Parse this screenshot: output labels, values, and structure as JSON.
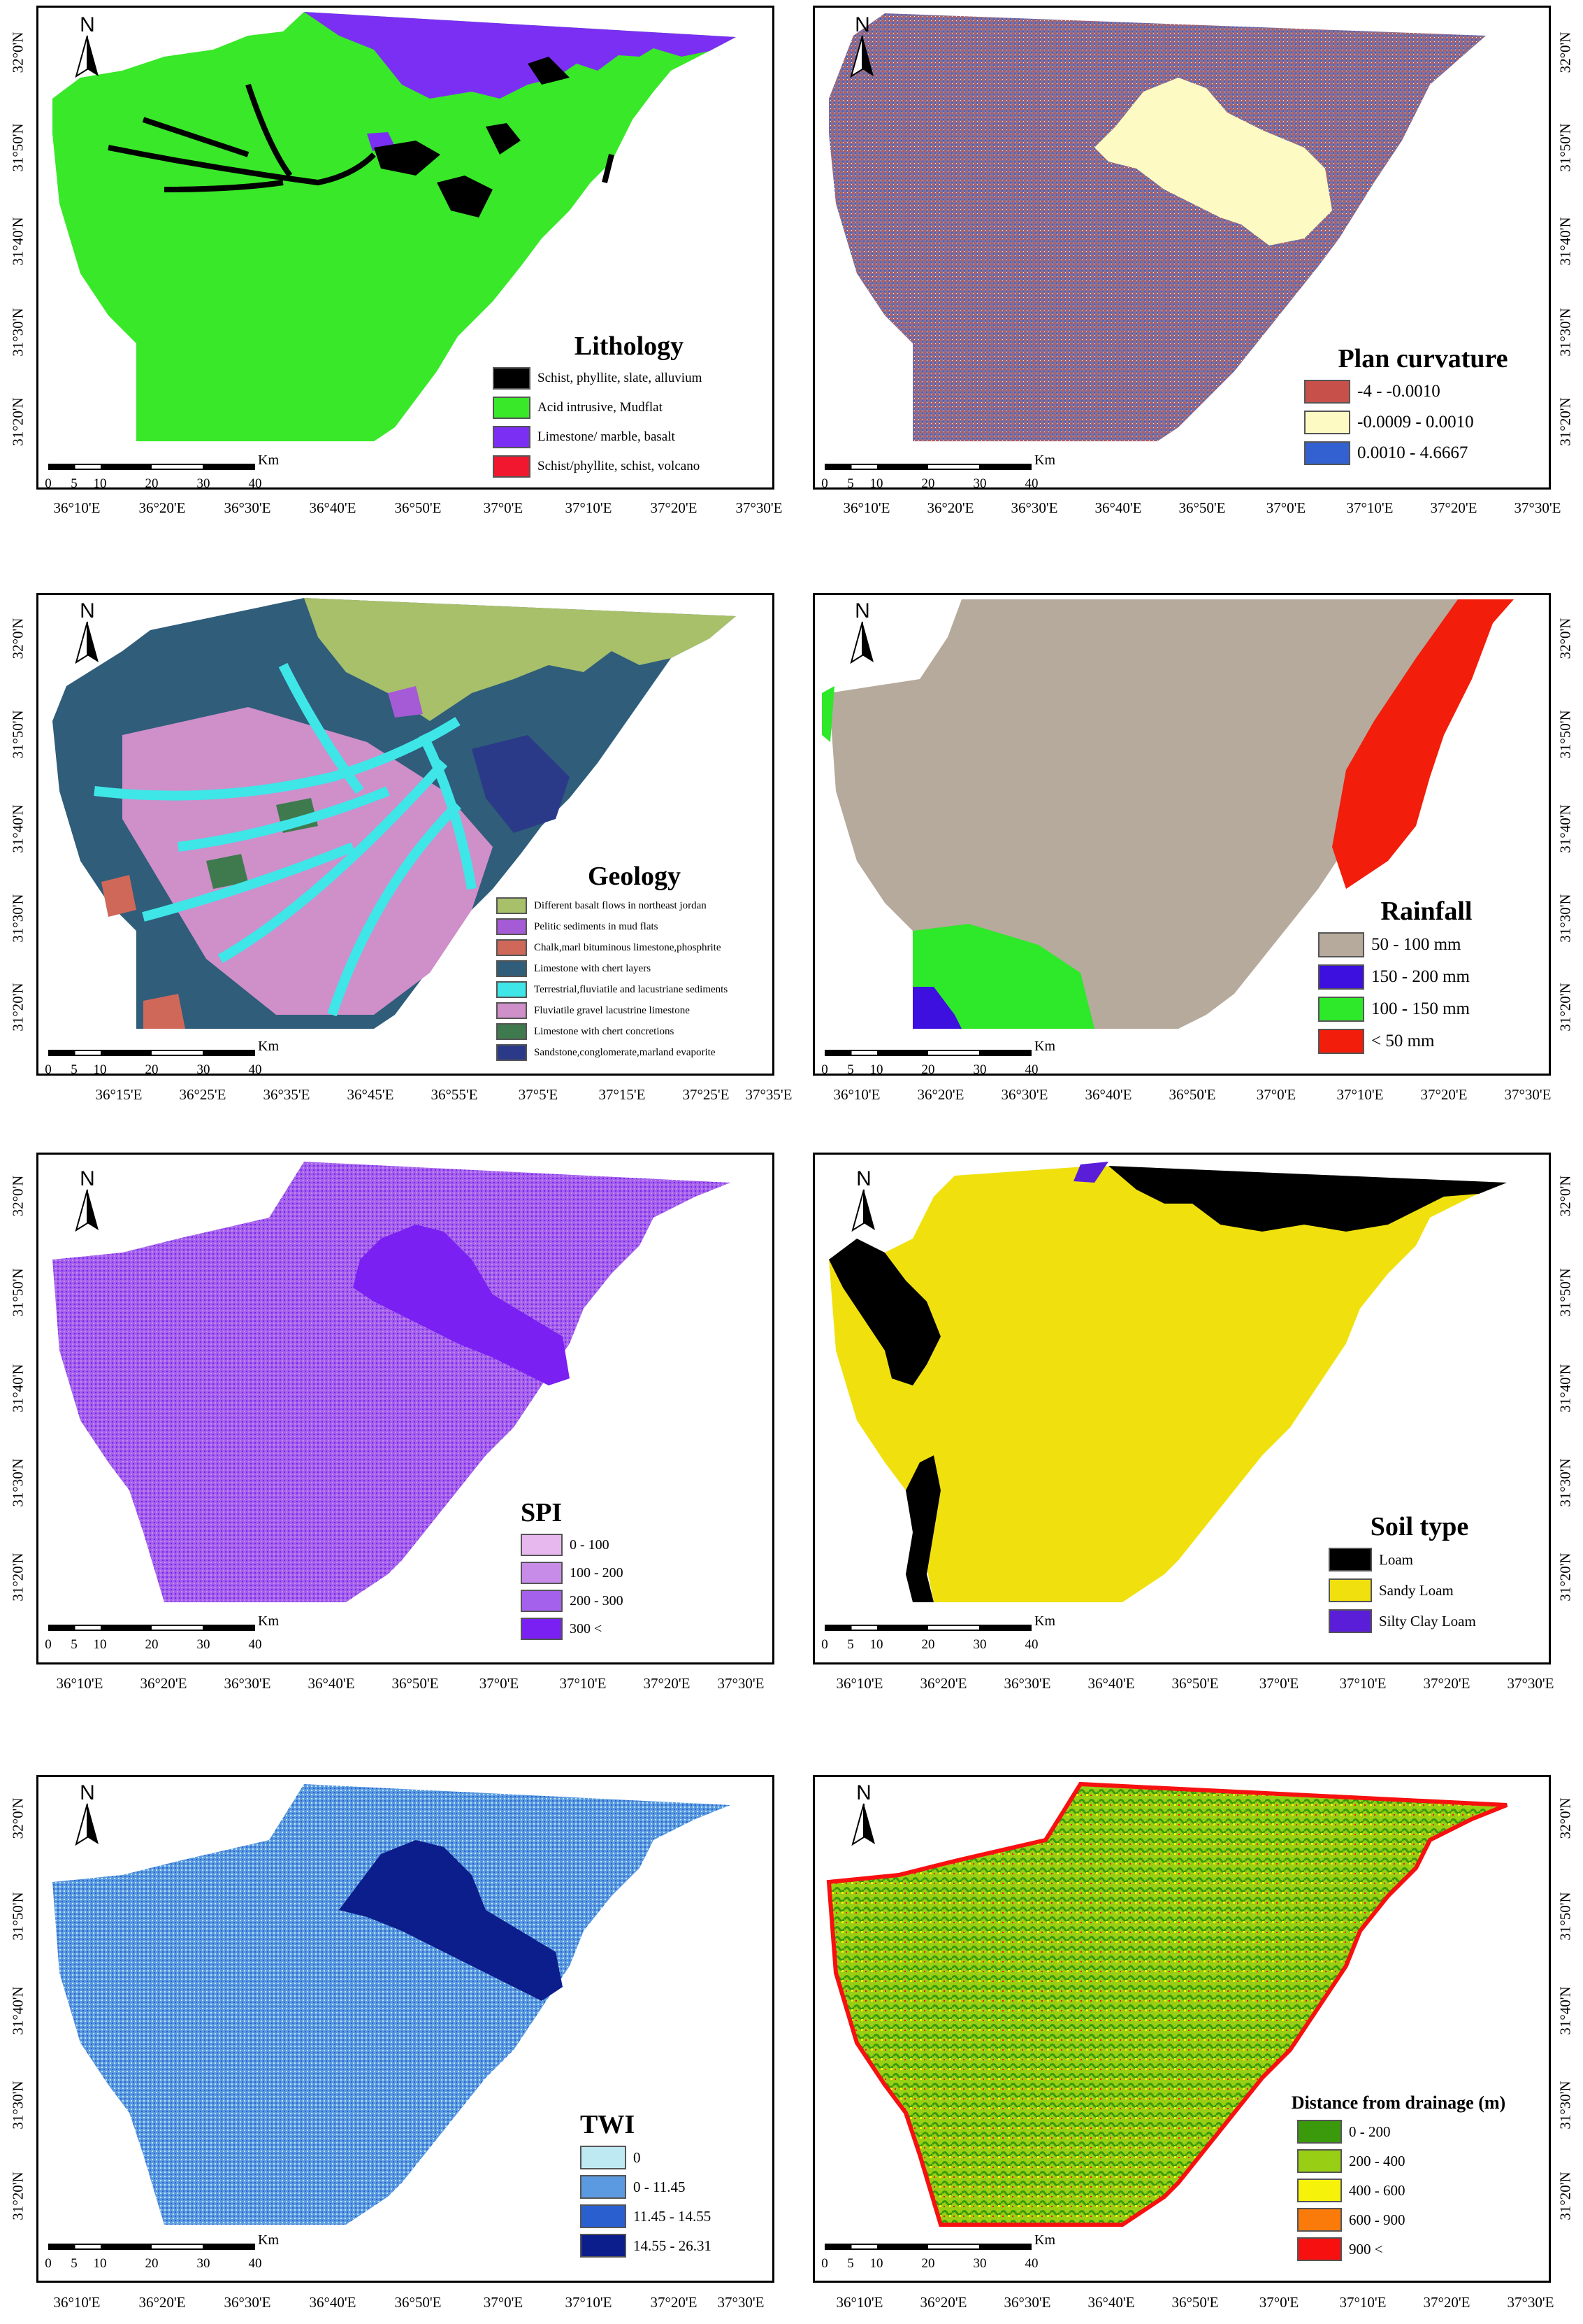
{
  "common": {
    "north": "N",
    "scale_unit": "Km",
    "scale_ticks": [
      "0",
      "5",
      "10",
      "20",
      "30",
      "40"
    ],
    "lon_std": [
      "36°10'E",
      "36°20'E",
      "36°30'E",
      "36°40'E",
      "36°50'E",
      "37°0'E",
      "37°10'E",
      "37°20'E",
      "37°30'E"
    ],
    "lon_geo": [
      "36°15'E",
      "36°25'E",
      "36°35'E",
      "36°45'E",
      "36°55'E",
      "37°5'E",
      "37°15'E",
      "37°25'E",
      "37°35'E"
    ],
    "lat": [
      "32°0'N",
      "31°50'N",
      "31°40'N",
      "31°30'N",
      "31°20'N"
    ]
  },
  "panels": [
    {
      "id": "lithology",
      "title": "Lithology",
      "items": [
        {
          "label": "Schist, phyllite, slate, alluvium",
          "color": "#000000"
        },
        {
          "label": "Acid intrusive, Mudflat",
          "color": "#39e829"
        },
        {
          "label": "Limestone/ marble, basalt",
          "color": "#7b2ff2"
        },
        {
          "label": "Schist/phyllite, schist, volcano",
          "color": "#f0172e"
        }
      ]
    },
    {
      "id": "plan-curvature",
      "title": "Plan curvature",
      "items": [
        {
          "label": "-4 - -0.0010",
          "color": "#c7504a"
        },
        {
          "label": "-0.0009 - 0.0010",
          "color": "#fdfbc3"
        },
        {
          "label": "0.0010 - 4.6667",
          "color": "#3461d1"
        }
      ]
    },
    {
      "id": "geology",
      "title": "Geology",
      "items": [
        {
          "label": "Different basalt flows in northeast jordan",
          "color": "#a8c06a"
        },
        {
          "label": "Pelitic sediments in mud flats",
          "color": "#a55ad6"
        },
        {
          "label": "Chalk,marl bituminous limestone,phosphrite",
          "color": "#d0685a"
        },
        {
          "label": "Limestone with chert layers",
          "color": "#2f5d7a"
        },
        {
          "label": "Terrestrial,fluviatile and lacustriane sediments",
          "color": "#3ee6e8"
        },
        {
          "label": "Fluviatile gravel lacustrine limestone",
          "color": "#cf8fc9"
        },
        {
          "label": "Limestone with chert concretions",
          "color": "#3e7a4e"
        },
        {
          "label": "Sandstone,conglomerate,marland evaporite",
          "color": "#2b3a88"
        }
      ]
    },
    {
      "id": "rainfall",
      "title": "Rainfall",
      "items": [
        {
          "label": "50 - 100 mm",
          "color": "#b6aa9c"
        },
        {
          "label": "150 - 200 mm",
          "color": "#3d10e0"
        },
        {
          "label": "100 - 150 mm",
          "color": "#2ee82a"
        },
        {
          "label": "< 50 mm",
          "color": "#f21d0a"
        }
      ]
    },
    {
      "id": "spi",
      "title": "SPI",
      "items": [
        {
          "label": "0 - 100",
          "color": "#e7b8ee"
        },
        {
          "label": "100 - 200",
          "color": "#c68ce8"
        },
        {
          "label": "200 - 300",
          "color": "#a361ec"
        },
        {
          "label": "300 <",
          "color": "#7a20f2"
        }
      ]
    },
    {
      "id": "soil-type",
      "title": "Soil type",
      "items": [
        {
          "label": "Loam",
          "color": "#000000"
        },
        {
          "label": "Sandy Loam",
          "color": "#f0e10e"
        },
        {
          "label": "Silty Clay Loam",
          "color": "#5a1ed8"
        }
      ]
    },
    {
      "id": "twi",
      "title": "TWI",
      "items": [
        {
          "label": "0",
          "color": "#bfe9f2"
        },
        {
          "label": "0 - 11.45",
          "color": "#5b9ae0"
        },
        {
          "label": "11.45 - 14.55",
          "color": "#2a5fd0"
        },
        {
          "label": "14.55 - 26.31",
          "color": "#0c1e8c"
        }
      ]
    },
    {
      "id": "distance-drainage",
      "title": "Distance from drainage (m)",
      "items": [
        {
          "label": "0 - 200",
          "color": "#3a9a0c"
        },
        {
          "label": "200 - 400",
          "color": "#98cf14"
        },
        {
          "label": "400 - 600",
          "color": "#f7f20a"
        },
        {
          "label": "600 - 900",
          "color": "#fa7a0a"
        },
        {
          "label": "900 <",
          "color": "#f71010"
        }
      ]
    }
  ]
}
